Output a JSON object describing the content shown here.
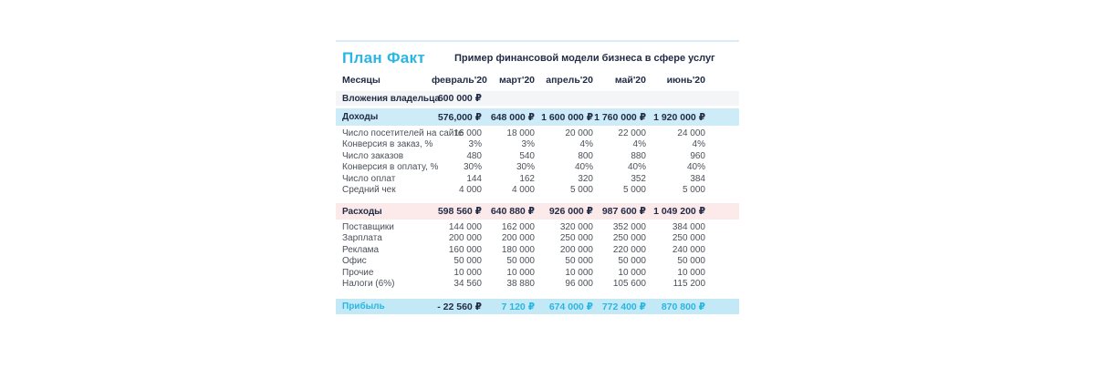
{
  "header": {
    "title": "План Факт",
    "subtitle": "Пример финансовой модели бизнеса в сфере услуг"
  },
  "colors": {
    "accent_cyan": "#29b6e4",
    "navy_text": "#232c47",
    "income_row_bg": "#cdecf8",
    "expense_row_bg": "#fceaea",
    "profit_row_bg": "#c3e9f6",
    "investment_row_bg": "#f4f5f6",
    "top_line": "#d8ecf8"
  },
  "table": {
    "months_label": "Месяцы",
    "months": [
      "февраль'20",
      "март'20",
      "апрель'20",
      "май'20",
      "июнь'20"
    ],
    "rows": [
      {
        "type": "gray",
        "label": "Вложения владельца",
        "values": [
          "600 000 ₽",
          "",
          "",
          "",
          ""
        ]
      },
      {
        "type": "income",
        "label": "Доходы",
        "values": [
          "576,000 ₽",
          "648 000 ₽",
          "1 600 000 ₽",
          "1 760 000 ₽",
          "1 920 000 ₽"
        ]
      },
      {
        "type": "plain",
        "label": "Число посетителей на сайте",
        "values": [
          "16 000",
          "18 000",
          "20 000",
          "22 000",
          "24 000"
        ]
      },
      {
        "type": "plain",
        "label": "Конверсия в заказ, %",
        "values": [
          "3%",
          "3%",
          "4%",
          "4%",
          "4%"
        ]
      },
      {
        "type": "plain",
        "label": "Число заказов",
        "values": [
          "480",
          "540",
          "800",
          "880",
          "960"
        ]
      },
      {
        "type": "plain",
        "label": "Конверсия в оплату, %",
        "values": [
          "30%",
          "30%",
          "40%",
          "40%",
          "40%"
        ]
      },
      {
        "type": "plain",
        "label": "Число оплат",
        "values": [
          "144",
          "162",
          "320",
          "352",
          "384"
        ]
      },
      {
        "type": "plain",
        "label": "Средний чек",
        "values": [
          "4 000",
          "4 000",
          "5 000",
          "5 000",
          "5 000"
        ]
      },
      {
        "type": "expense",
        "label": "Расходы",
        "values": [
          "598 560 ₽",
          "640 880 ₽",
          "926 000 ₽",
          "987 600 ₽",
          "1 049 200 ₽"
        ]
      },
      {
        "type": "plain",
        "label": "Поставщики",
        "values": [
          "144 000",
          "162 000",
          "320 000",
          "352 000",
          "384 000"
        ]
      },
      {
        "type": "plain",
        "label": "Зарплата",
        "values": [
          "200 000",
          "200 000",
          "250 000",
          "250 000",
          "250 000"
        ]
      },
      {
        "type": "plain",
        "label": "Реклама",
        "values": [
          "160 000",
          "180 000",
          "200 000",
          "220 000",
          "240 000"
        ]
      },
      {
        "type": "plain",
        "label": "Офис",
        "values": [
          "50 000",
          "50 000",
          "50 000",
          "50 000",
          "50 000"
        ]
      },
      {
        "type": "plain",
        "label": "Прочие",
        "values": [
          "10 000",
          "10 000",
          "10 000",
          "10 000",
          "10 000"
        ]
      },
      {
        "type": "plain",
        "label": "Налоги (6%)",
        "values": [
          "34 560",
          "38 880",
          "96 000",
          "105 600",
          "115 200"
        ]
      },
      {
        "type": "profit",
        "label": "Прибыль",
        "values": [
          "- 22 560 ₽",
          "7 120 ₽",
          "674 000 ₽",
          "772 400 ₽",
          "870 800 ₽"
        ]
      }
    ]
  }
}
